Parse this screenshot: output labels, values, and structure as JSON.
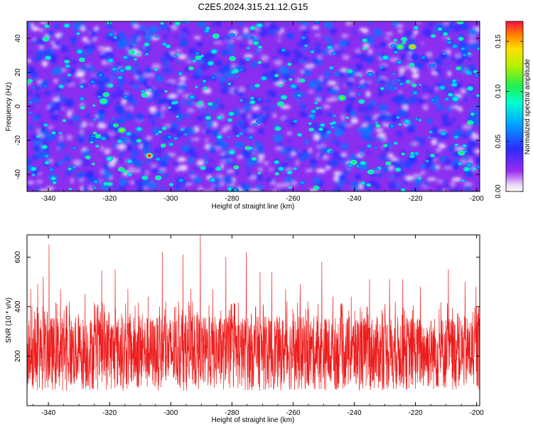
{
  "title": "C2E5.2024.315.21.12.G15",
  "chart_data": [
    {
      "type": "heatmap",
      "title": "",
      "xlabel": "Height of straight line (km)",
      "ylabel": "Frequency (Hz)",
      "xlim": [
        -347,
        -199
      ],
      "ylim": [
        -50,
        50
      ],
      "xticks": [
        "-340",
        "-320",
        "-300",
        "-280",
        "-260",
        "-240",
        "-220",
        "-200"
      ],
      "yticks": [
        "-40",
        "-20",
        "0",
        "20",
        "40"
      ],
      "colorbar": {
        "label": "Normalized spectral amplitude",
        "range": [
          0,
          0.17
        ],
        "ticks": [
          "0.00",
          "0.05",
          "0.10",
          "0.15"
        ],
        "colormap": "rainbow: white-violet-blue-cyan-green-yellow-orange-red"
      },
      "note_peaks": [
        {
          "x": -307.0,
          "y": -29,
          "amplitude": 0.17
        },
        {
          "x": -316.0,
          "y": -14,
          "amplitude": 0.13
        },
        {
          "x": -221.0,
          "y": 35,
          "amplitude": 0.15
        },
        {
          "x": -225.0,
          "y": 35,
          "amplitude": 0.12
        },
        {
          "x": -244.0,
          "y": 5,
          "amplitude": 0.12
        },
        {
          "x": -322.0,
          "y": 3,
          "amplitude": 0.11
        }
      ],
      "grid": false
    },
    {
      "type": "line",
      "title": "",
      "xlabel": "Height of straight line (km)",
      "ylabel": "SNR (10 * v/v)",
      "xlim": [
        -347,
        -199
      ],
      "ylim": [
        0,
        690
      ],
      "xticks": [
        "-340",
        "-320",
        "-300",
        "-280",
        "-260",
        "-240",
        "-220",
        "-200"
      ],
      "yticks": [
        "200",
        "400",
        "600"
      ],
      "series": [
        {
          "color": "#ee1c1c",
          "typical_range": [
            60,
            360
          ],
          "peaks": [
            {
              "x": -345.8,
              "y": 470
            },
            {
              "x": -343.5,
              "y": 490
            },
            {
              "x": -341.7,
              "y": 520
            },
            {
              "x": -339.8,
              "y": 650
            },
            {
              "x": -336.0,
              "y": 470
            },
            {
              "x": -333.2,
              "y": 420
            },
            {
              "x": -328.0,
              "y": 450
            },
            {
              "x": -322.6,
              "y": 545
            },
            {
              "x": -318.2,
              "y": 550
            },
            {
              "x": -314.0,
              "y": 470
            },
            {
              "x": -307.4,
              "y": 440
            },
            {
              "x": -302.8,
              "y": 620
            },
            {
              "x": -296.0,
              "y": 610
            },
            {
              "x": -293.4,
              "y": 470
            },
            {
              "x": -290.3,
              "y": 690
            },
            {
              "x": -286.2,
              "y": 470
            },
            {
              "x": -282.0,
              "y": 600
            },
            {
              "x": -275.3,
              "y": 620
            },
            {
              "x": -270.8,
              "y": 540
            },
            {
              "x": -267.0,
              "y": 540
            },
            {
              "x": -262.5,
              "y": 470
            },
            {
              "x": -257.7,
              "y": 490
            },
            {
              "x": -250.6,
              "y": 580
            },
            {
              "x": -247.0,
              "y": 440
            },
            {
              "x": -241.0,
              "y": 440
            },
            {
              "x": -235.0,
              "y": 510
            },
            {
              "x": -228.5,
              "y": 510
            },
            {
              "x": -224.2,
              "y": 510
            },
            {
              "x": -218.4,
              "y": 480
            },
            {
              "x": -209.2,
              "y": 550
            },
            {
              "x": -203.8,
              "y": 500
            },
            {
              "x": -200.2,
              "y": 480
            }
          ]
        }
      ],
      "grid": false
    }
  ]
}
